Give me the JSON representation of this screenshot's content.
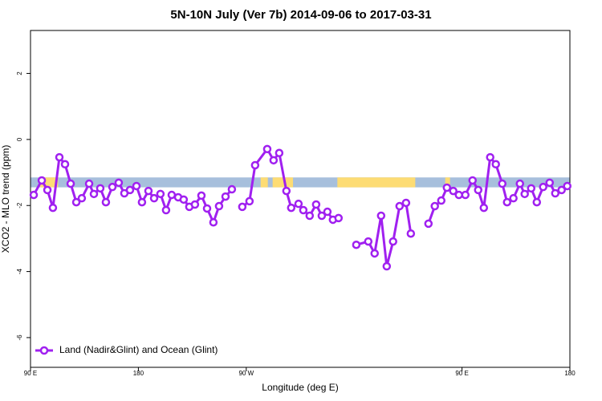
{
  "chart_data": {
    "type": "line",
    "title": "5N-10N July (Ver 7b)   2014-09-06 to 2017-03-31",
    "x_label": "Longitude (deg E)",
    "y_label": "XCO2 - MLO trend (ppm)",
    "xlim": [
      90,
      540
    ],
    "ylim": [
      -6.9,
      3.3
    ],
    "xticks": [
      {
        "value": 90,
        "label": "90 E"
      },
      180,
      {
        "value": 270,
        "label": "90 W"
      },
      {
        "value": 450,
        "label": "90 E"
      },
      {
        "value": 540,
        "label": "180"
      }
    ],
    "yticks": [
      -6,
      -4,
      -2,
      0,
      2
    ],
    "legend": "bottom-left",
    "band": {
      "y": [
        -1.45,
        -1.15
      ],
      "ocean_color": "#a7bfdc",
      "land_color": "#fddc74",
      "land": [
        [
          98,
          113
        ],
        [
          282,
          288
        ],
        [
          292,
          309
        ],
        [
          346,
          411
        ],
        [
          436,
          440
        ]
      ]
    },
    "x": [
      92.7,
      99.4,
      104.1,
      108.7,
      114.1,
      118.8,
      123.5,
      128.2,
      132.8,
      138.9,
      142.9,
      148.2,
      152.9,
      158.3,
      163.6,
      168.3,
      173.0,
      178.4,
      183.0,
      188.4,
      193.1,
      198.4,
      203.1,
      207.8,
      213.2,
      217.8,
      222.5,
      227.2,
      232.6,
      237.3,
      242.6,
      247.3,
      252.7,
      258.0,
      262,
      266.7,
      272.7,
      277.4,
      287.5,
      292.8,
      297.5,
      303.5,
      307.5,
      313.6,
      317.6,
      322.9,
      328.3,
      333.0,
      337.7,
      342.3,
      347.0,
      352,
      361.8,
      371.8,
      377.1,
      382.5,
      387.2,
      392.5,
      397.9,
      403.3,
      407.3,
      415,
      422.0,
      427.3,
      432.7,
      437.4,
      442.7,
      447.4,
      452.8,
      458.8,
      463.5,
      468.2,
      473.5,
      478.2,
      483.6,
      487.6,
      492.9,
      498.3,
      502.3,
      507.7,
      512.4,
      517.7,
      523.1,
      527.8,
      533.1,
      537.8
    ],
    "series": [
      {
        "name": "Land (Nadir&Glint) and Ocean (Glint)",
        "color": "#a020f0",
        "values": [
          -1.68,
          -1.24,
          -1.53,
          -2.07,
          -0.54,
          -0.75,
          -1.34,
          -1.9,
          -1.78,
          -1.34,
          -1.65,
          -1.48,
          -1.9,
          -1.44,
          -1.31,
          -1.63,
          -1.53,
          -1.41,
          -1.9,
          -1.56,
          -1.78,
          -1.65,
          -2.14,
          -1.68,
          -1.75,
          -1.82,
          -2.04,
          -1.97,
          -1.7,
          -2.09,
          -2.51,
          -2.02,
          -1.73,
          -1.51,
          null,
          -2.04,
          -1.87,
          -0.78,
          -0.29,
          -0.63,
          -0.41,
          -1.56,
          -2.07,
          -1.95,
          -2.14,
          -2.31,
          -1.97,
          -2.31,
          -2.19,
          -2.43,
          -2.38,
          null,
          -3.19,
          -3.09,
          -3.45,
          -2.31,
          -3.84,
          -3.09,
          -2.02,
          -1.92,
          -2.85,
          null,
          -2.55,
          -2.02,
          -1.85,
          -1.46,
          -1.56,
          -1.68,
          -1.68,
          -1.24,
          -1.53,
          -2.07,
          -0.54,
          -0.75,
          -1.34,
          -1.9,
          -1.78,
          -1.34,
          -1.65,
          -1.48,
          -1.9,
          -1.44,
          -1.31,
          -1.63,
          -1.53,
          -1.41
        ]
      }
    ]
  }
}
